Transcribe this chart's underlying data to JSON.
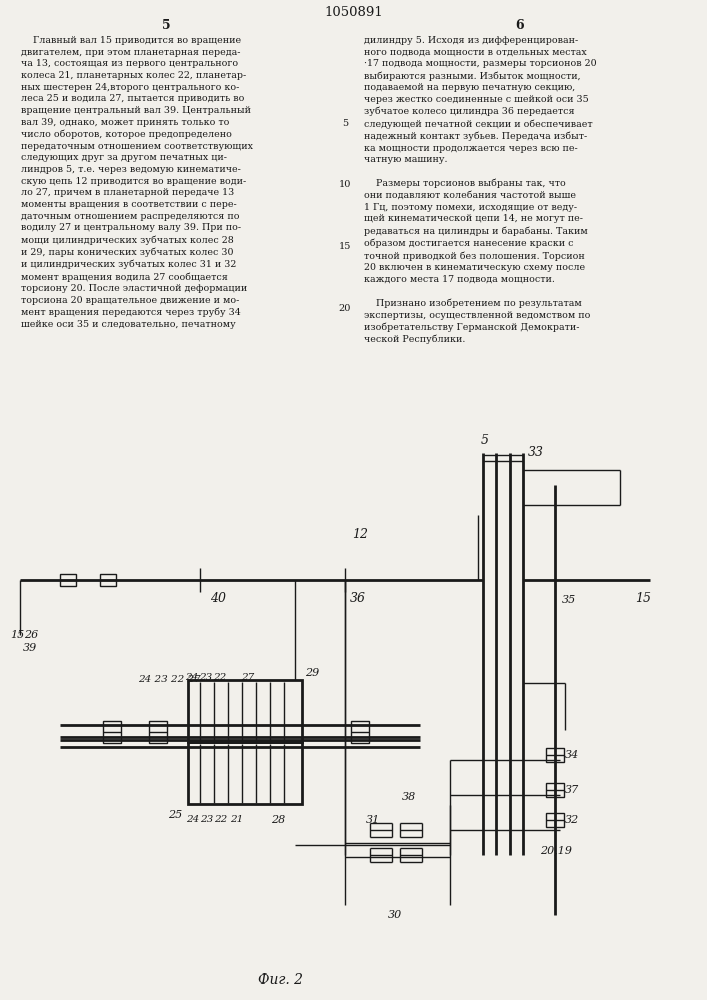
{
  "title": "1050891",
  "fig_label": "Фиг. 2",
  "bg_color": "#f2f0eb",
  "line_color": "#1a1a1a",
  "text_color": "#1a1a1a",
  "lw": 1.0,
  "lw_thick": 2.0,
  "col1_header": "5",
  "col2_header": "6",
  "col1_text": "    Главный вал 15 приводится во вращение\nдвигателем, при этом планетарная переда-\nча 13, состоящая из первого центрального\nколеса 21, планетарных колес 22, планетар-\nных шестерен 24,второго центрального ко-\nлеса 25 и водила 27, пытается приводить во\nвращение центральный вал 39. Центральный\nвал 39, однако, может принять только то\nчисло оборотов, которое предопределено\nпередаточным отношением соответствующих\nследующих друг за другом печатных ци-\nлиндров 5, т.е. через ведомую кинематиче-\nскую цепь 12 приводится во вращение води-\nло 27, причем в планетарной передаче 13\nмоменты вращения в соответствии с пере-\nдаточным отношением распределяются по\nводилу 27 и центральному валу 39. При по-\nмощи цилиндрических зубчатых колес 28\nи 29, пары конических зубчатых колес 30\nи цилиндрических зубчатых колес 31 и 32\nмомент вращения водила 27 сообщается\nторсиону 20. После эластичной деформации\nторсиона 20 вращательное движение и мо-\nмент вращения передаются через трубу 34\nшейке оси 35 и следовательно, печатному",
  "col2_text": "дилиндру 5. Исходя из дифференцирован-\nного подвода мощности в отдельных местах\n·17 подвода мощности, размеры торсионов 20\nвыбираются разными. Избыток мощности,\nподаваемой на первую печатную секцию,\nчерез жестко соединенные с шейкой оси 35\nзубчатое колесо цилиндра 36 передается\nследующей печатной секции и обеспечивает\nнадежный контакт зубьев. Передача избыт-\nка мощности продолжается через всю пе-\nчатную машину.\n\n    Размеры торсионов выбраны так, что\nони подавляют колебания частотой выше\n1 Гц, поэтому помехи, исходящие от веду-\nщей кинематической цепи 14, не могут пе-\nредаваться на цилиндры и барабаны. Таким\nобразом достигается нанесение краски с\nточной приводкой без полошения. Торсион\n20 включен в кинематическую схему после\nкаждого места 17 подвода мощности.\n\n    Признано изобретением по результатам\nэкспертизы, осуществленной ведомством по\nизобретательству Германской Демократи-\nческой Республики."
}
